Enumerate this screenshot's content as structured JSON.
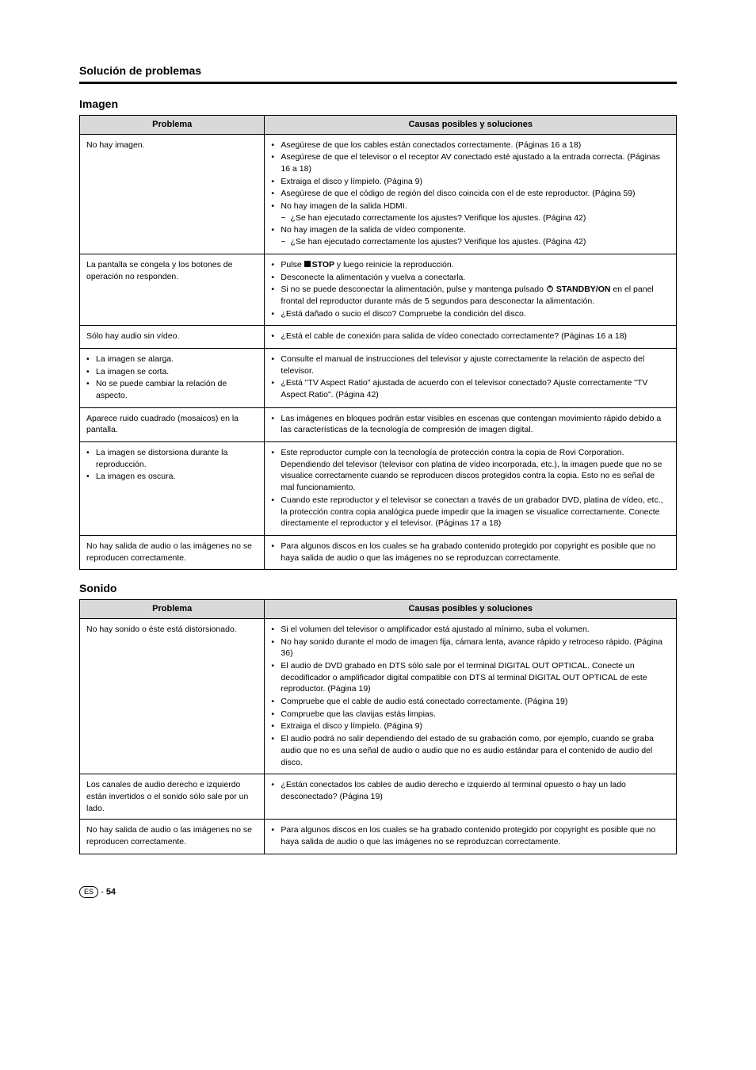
{
  "pageTitle": "Solución de problemas",
  "sections": [
    {
      "title": "Imagen",
      "headers": {
        "problema": "Problema",
        "causas": "Causas posibles y soluciones"
      },
      "rows": [
        {
          "problema": "No hay imagen.",
          "causas": [
            {
              "text": "Asegúrese de que los cables están conectados correctamente. (Páginas 16 a 18)"
            },
            {
              "text": "Asegúrese de que el televisor o el receptor AV conectado esté ajustado a la entrada correcta. (Páginas 16 a 18)"
            },
            {
              "text": "Extraiga el disco y límpielo. (Página 9)"
            },
            {
              "text": "Asegúrese de que el código de región del disco coincida con el de este reproductor. (Página 59)"
            },
            {
              "text": "No hay imagen de la salida HDMI.",
              "sub": [
                "¿Se han ejecutado correctamente los ajustes? Verifique los ajustes. (Página 42)"
              ]
            },
            {
              "text": "No hay imagen de la salida de vídeo componente.",
              "sub": [
                "¿Se han ejecutado correctamente los ajustes? Verifique los ajustes. (Página 42)"
              ]
            }
          ]
        },
        {
          "problema": "La pantalla se congela y los botones de operación no responden.",
          "causas": [
            {
              "text": "Pulse <STOP> y luego reinicie la reproducción.",
              "hasStopIcon": true
            },
            {
              "text": "Desconecte la alimentación y vuelva a conectarla."
            },
            {
              "text": "Si no se puede desconectar la alimentación, pulse y mantenga pulsado <POWER> en el panel frontal del reproductor durante más de 5 segundos para desconectar la alimentación.",
              "hasPowerIcon": true
            },
            {
              "text": "¿Está dañado o sucio el disco? Compruebe la condición del disco."
            }
          ]
        },
        {
          "problema": "Sólo hay audio sin vídeo.",
          "causas": [
            {
              "text": "¿Está el cable de conexión para salida de vídeo conectado correctamente? (Páginas 16 a 18)"
            }
          ]
        },
        {
          "problemaList": [
            "La imagen se alarga.",
            "La imagen se corta.",
            "No se puede cambiar la relación de aspecto."
          ],
          "causas": [
            {
              "text": "Consulte el manual de instrucciones del televisor y ajuste correctamente la relación de aspecto del televisor."
            },
            {
              "text": "¿Está \"TV Aspect Ratio\" ajustada de acuerdo con el televisor conectado? Ajuste correctamente \"TV Aspect Ratio\". (Página 42)"
            }
          ]
        },
        {
          "problema": "Aparece ruido cuadrado (mosaicos) en la pantalla.",
          "causas": [
            {
              "text": "Las imágenes en bloques podrán estar visibles en escenas que contengan movimiento rápido debido a las características de la tecnología de compresión de imagen digital."
            }
          ]
        },
        {
          "problemaList": [
            "La imagen se distorsiona durante la reproducción.",
            "La imagen es oscura."
          ],
          "causas": [
            {
              "text": "Este reproductor cumple con la tecnología de protección contra la copia de Rovi Corporation. Dependiendo del televisor (televisor con platina de vídeo incorporada, etc.), la imagen puede que no se visualice correctamente cuando se reproducen discos protegidos contra la copia. Esto no es señal de mal funcionamiento."
            },
            {
              "text": "Cuando este reproductor y el televisor se conectan a través de un grabador DVD, platina de vídeo, etc., la protección contra copia analógica puede impedir que la imagen se visualice correctamente. Conecte directamente el reproductor y el televisor. (Páginas 17 a 18)"
            }
          ]
        },
        {
          "problema": "No hay salida de audio o las imágenes no se reproducen correctamente.",
          "causas": [
            {
              "text": "Para algunos discos en los cuales se ha grabado contenido protegido por copyright es posible que no haya salida de audio o que las imágenes no se reproduzcan correctamente."
            }
          ]
        }
      ]
    },
    {
      "title": "Sonido",
      "headers": {
        "problema": "Problema",
        "causas": "Causas posibles y soluciones"
      },
      "rows": [
        {
          "problema": "No hay sonido o éste está distorsionado.",
          "causas": [
            {
              "text": "Si el volumen del televisor o amplificador está ajustado al mínimo, suba el volumen."
            },
            {
              "text": "No hay sonido durante el modo de imagen fija, cámara lenta, avance rápido y retroceso rápido. (Página 36)"
            },
            {
              "text": "El audio de DVD grabado en DTS sólo sale por el terminal DIGITAL OUT OPTICAL. Conecte un decodificador o amplificador digital compatible con DTS al terminal DIGITAL OUT OPTICAL de este reproductor. (Página 19)"
            },
            {
              "text": "Compruebe que el cable de audio está conectado correctamente. (Página 19)"
            },
            {
              "text": "Compruebe que las clavijas estás limpias."
            },
            {
              "text": "Extraiga el disco y límpielo. (Página 9)"
            },
            {
              "text": "El audio podrá no salir dependiendo del estado de su grabación como, por ejemplo, cuando se graba audio que no es una señal de audio o audio que no es audio estándar para el contenido de audio del disco."
            }
          ]
        },
        {
          "problema": "Los canales de audio derecho e izquierdo están invertidos o el sonido sólo sale por un lado.",
          "causas": [
            {
              "text": "¿Están conectados los cables de audio derecho e izquierdo al terminal opuesto o hay un lado desconectado? (Página 19)"
            }
          ]
        },
        {
          "problema": "No hay salida de audio o las imágenes no se reproducen correctamente.",
          "causas": [
            {
              "text": "Para algunos discos en los cuales se ha grabado contenido protegido por copyright es posible que no haya salida de audio o que las imágenes no se reproduzcan correctamente."
            }
          ]
        }
      ]
    }
  ],
  "footer": {
    "lang": "ES",
    "pageNumber": "54"
  },
  "labels": {
    "standby": "STANDBY/ON",
    "stop": "STOP"
  }
}
